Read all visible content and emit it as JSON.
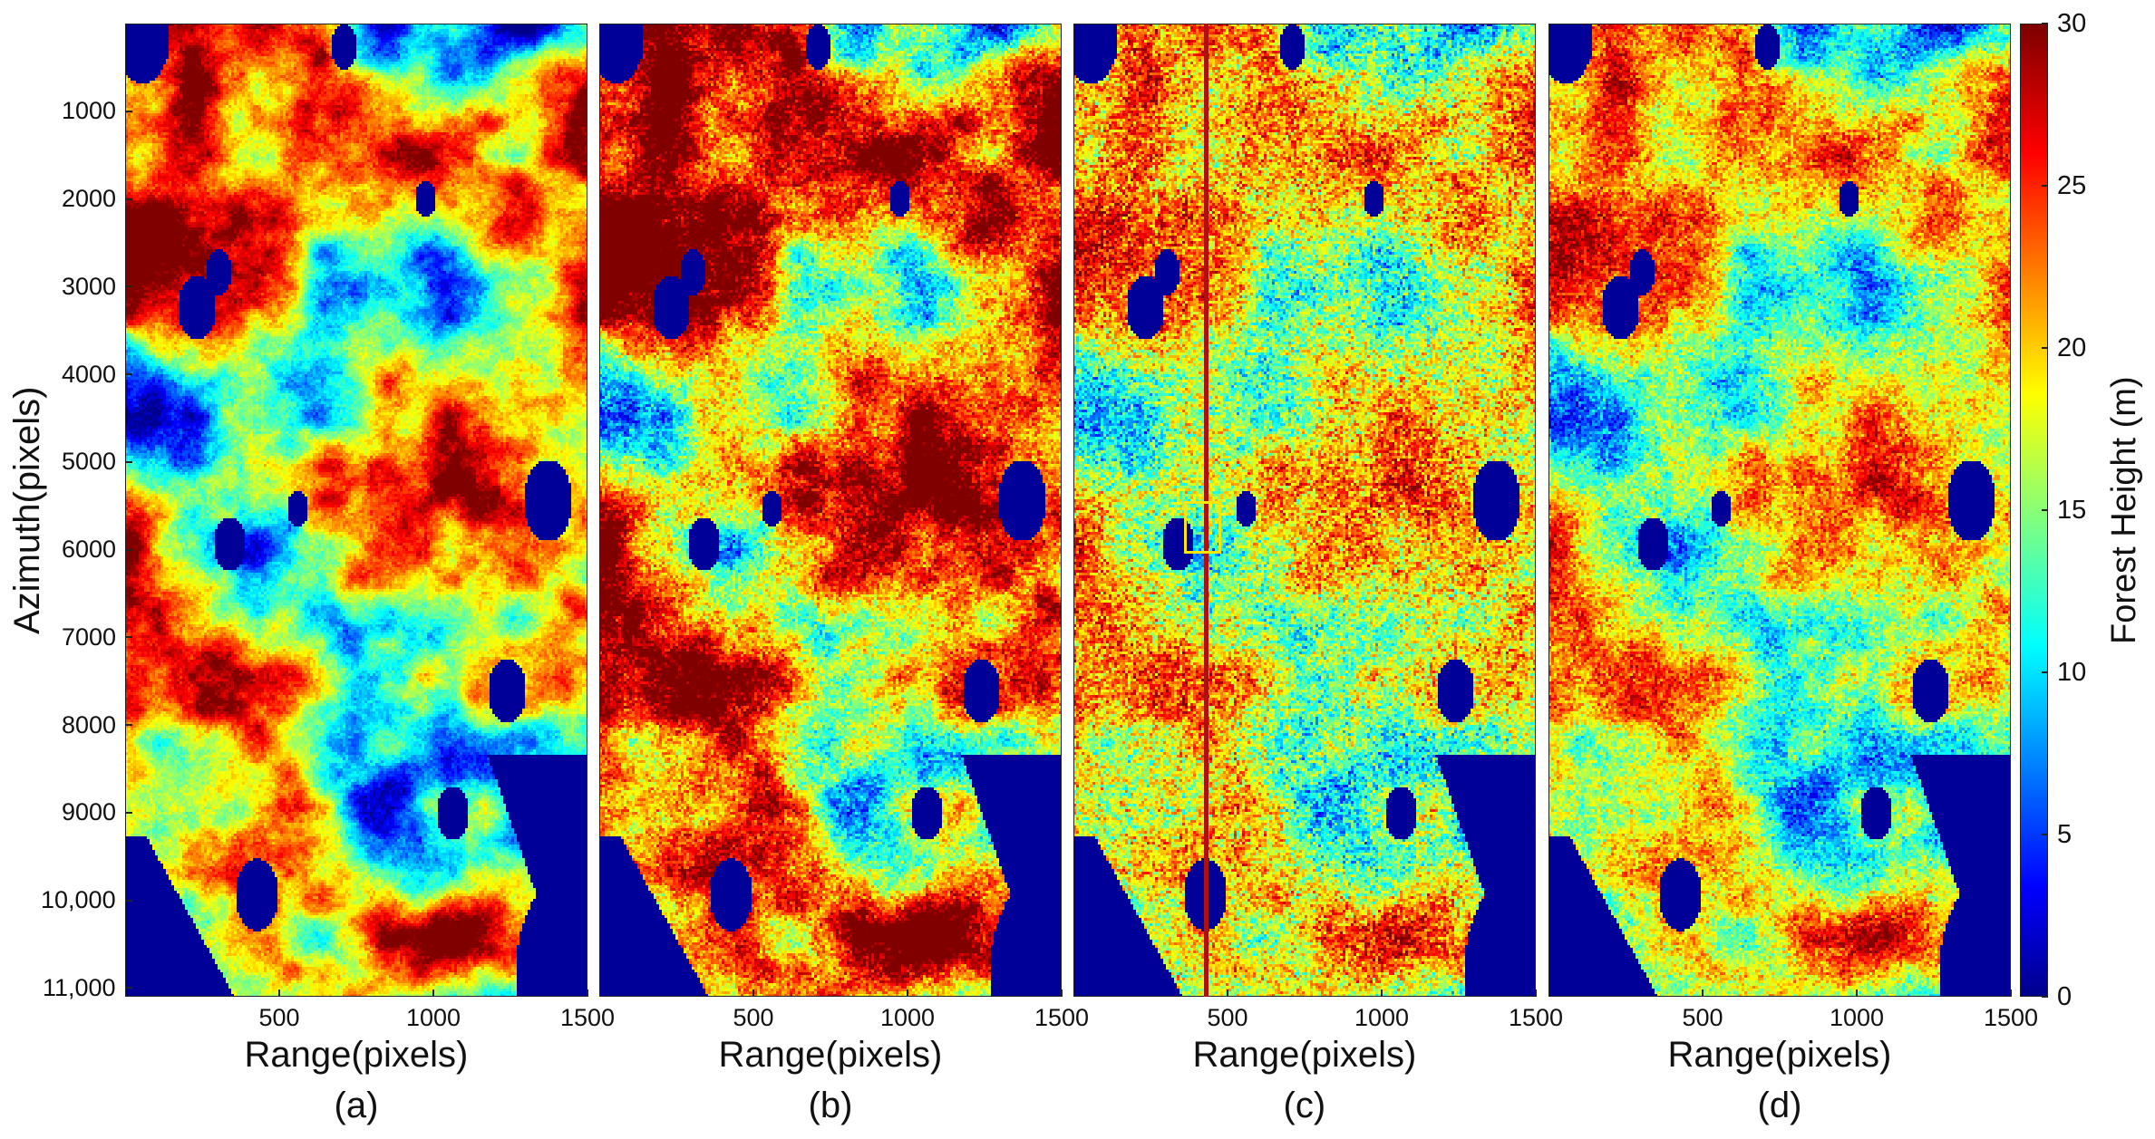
{
  "figure": {
    "ylabel": "Azimuth(pixels)",
    "colorbar_label": "Forest Height (m)"
  },
  "chart_data": {
    "type": "heatmap",
    "colormap": "jet",
    "colormap_colors": [
      "#00008f",
      "#0000ff",
      "#00ffff",
      "#ffff00",
      "#ff0000",
      "#800000"
    ],
    "colorbar": {
      "range": [
        0,
        30
      ],
      "ticks": [
        "0",
        "5",
        "10",
        "15",
        "20",
        "25",
        "30"
      ],
      "label": "Forest Height (m)"
    },
    "y_axis": {
      "label": "Azimuth(pixels)",
      "range": [
        0,
        11100
      ],
      "ticks": [
        1000,
        2000,
        3000,
        4000,
        5000,
        6000,
        7000,
        8000,
        9000,
        10000,
        11000
      ],
      "tick_labels": [
        "1000",
        "2000",
        "3000",
        "4000",
        "5000",
        "6000",
        "7000",
        "8000",
        "9000",
        "10,000",
        "11,000"
      ]
    },
    "x_axis": {
      "label": "Range(pixels)",
      "range": [
        0,
        1500
      ],
      "ticks": [
        500,
        1000,
        1500
      ],
      "tick_labels": [
        "500",
        "1000",
        "1500"
      ]
    },
    "panels": [
      {
        "id": "a",
        "caption": "(a)",
        "xlabel": "Range(pixels)",
        "seed": 11,
        "mean": 0.56,
        "contrast": 0.9,
        "smooth": 1.0,
        "noise": 0.1,
        "annotations": false
      },
      {
        "id": "b",
        "caption": "(b)",
        "xlabel": "Range(pixels)",
        "seed": 23,
        "mean": 0.7,
        "contrast": 1.35,
        "smooth": 0.6,
        "noise": 0.22,
        "annotations": false
      },
      {
        "id": "c",
        "caption": "(c)",
        "xlabel": "Range(pixels)",
        "seed": 37,
        "mean": 0.58,
        "contrast": 1.0,
        "smooth": 0.35,
        "noise": 0.32,
        "annotations": true,
        "cut_line_range": 430,
        "roi_range": [
          360,
          480
        ],
        "roi_azimuth": [
          5450,
          6050
        ]
      },
      {
        "id": "d",
        "caption": "(d)",
        "xlabel": "Range(pixels)",
        "seed": 41,
        "mean": 0.55,
        "contrast": 1.0,
        "smooth": 0.55,
        "noise": 0.22,
        "annotations": false
      }
    ]
  }
}
